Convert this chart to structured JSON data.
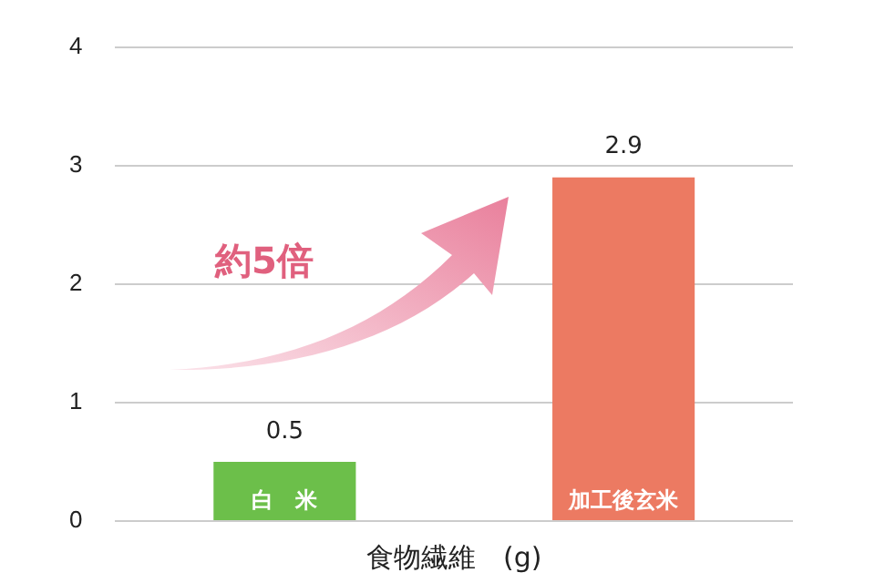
{
  "chart_data": {
    "type": "bar",
    "categories": [
      "白　米",
      "加工後玄米"
    ],
    "values": [
      0.5,
      2.9
    ],
    "colors": [
      "#6cbf4a",
      "#ec7a62"
    ],
    "xlabel": "食物繊維　(g)",
    "ylim": [
      0,
      4
    ],
    "yticks": [
      0,
      1,
      2,
      3,
      4
    ],
    "grid": "y",
    "data_labels": true,
    "legend": false,
    "annotations": [
      "約5倍"
    ]
  }
}
